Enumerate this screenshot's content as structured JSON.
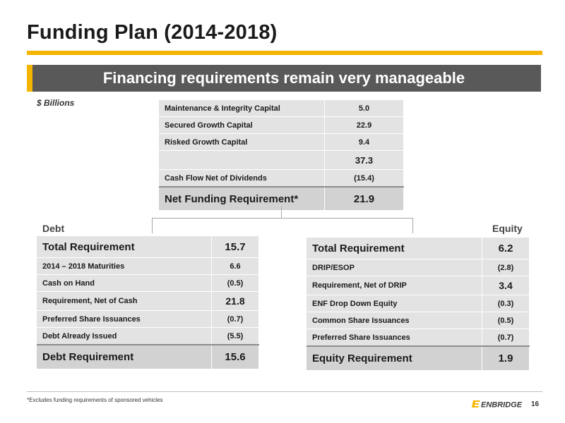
{
  "title": "Funding Plan (2014-2018)",
  "banner": "Financing requirements remain very manageable",
  "units": "$ Billions",
  "summary": {
    "rows": [
      {
        "label": "Maintenance & Integrity Capital",
        "value": "5.0"
      },
      {
        "label": "Secured Growth Capital",
        "value": "22.9"
      },
      {
        "label": "Risked Growth Capital",
        "value": "9.4"
      }
    ],
    "subtotal": "37.3",
    "cash_flow": {
      "label": "Cash Flow Net of Dividends",
      "value": "(15.4)"
    },
    "net": {
      "label": "Net Funding Requirement*",
      "value": "21.9"
    }
  },
  "debt": {
    "heading": "Debt",
    "rows": [
      {
        "label": "Total Requirement",
        "value": "15.7"
      },
      {
        "label": "2014 – 2018 Maturities",
        "value": "6.6"
      },
      {
        "label": "Cash on Hand",
        "value": "(0.5)"
      },
      {
        "label": "Requirement, Net of Cash",
        "value": "21.8"
      },
      {
        "label": "Preferred Share Issuances",
        "value": "(0.7)"
      },
      {
        "label": "Debt Already Issued",
        "value": "(5.5)"
      }
    ],
    "final": {
      "label": "Debt Requirement",
      "value": "15.6"
    }
  },
  "equity": {
    "heading": "Equity",
    "rows": [
      {
        "label": "Total Requirement",
        "value": "6.2"
      },
      {
        "label": "DRIP/ESOP",
        "value": "(2.8)"
      },
      {
        "label": "Requirement, Net of DRIP",
        "value": "3.4"
      },
      {
        "label": "ENF Drop Down Equity",
        "value": "(0.3)"
      },
      {
        "label": "Common Share Issuances",
        "value": "(0.5)"
      },
      {
        "label": "Preferred Share Issuances",
        "value": "(0.7)"
      }
    ],
    "final": {
      "label": "Equity Requirement",
      "value": "1.9"
    }
  },
  "footnote": "*Excludes funding requirements of sponsored vehicles",
  "logo": {
    "icon": "enbridge-e-icon",
    "text": "ENBRIDGE"
  },
  "page_number": "16",
  "colors": {
    "accent": "#f4b400",
    "banner": "#595959",
    "cell": "#e3e3e3",
    "cell_emphasis": "#d2d2d2"
  }
}
